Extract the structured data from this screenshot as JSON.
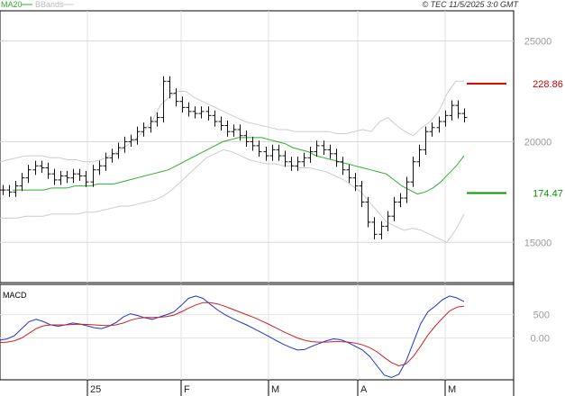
{
  "header": {
    "legend": [
      {
        "label": "MA20",
        "color": "#33aa33"
      },
      {
        "label": "BBands",
        "color": "#bbbbbb"
      }
    ],
    "copyright": "© TEC 11/5/2025 3:0 GMT"
  },
  "chart_data": [
    {
      "type": "line",
      "panel": "price",
      "x_labels": [
        "25",
        "F",
        "M",
        "A",
        "M"
      ],
      "y_ticks": [
        {
          "value": 250,
          "label": "25000"
        },
        {
          "value": 200,
          "label": "20000"
        },
        {
          "value": 150,
          "label": "15000"
        }
      ],
      "ylim": [
        130,
        265
      ],
      "levels": [
        {
          "label": "228.86",
          "value": 228.86,
          "color": "#cc0000"
        },
        {
          "label": "174.47",
          "value": 174.47,
          "color": "#009900"
        }
      ],
      "series": [
        {
          "name": "MA20",
          "color": "#33aa33",
          "values": [
            176,
            176,
            176,
            176,
            176,
            177,
            177,
            177,
            178,
            178,
            178,
            179,
            179,
            179,
            180,
            181,
            182,
            183,
            184,
            185,
            186,
            188,
            190,
            192,
            194,
            196,
            198,
            200,
            201,
            202,
            202,
            202,
            202,
            201,
            200,
            199,
            197,
            196,
            195,
            193,
            192,
            191,
            190,
            189,
            188,
            187,
            186,
            185,
            184,
            181,
            178,
            176,
            174,
            175,
            177,
            180,
            184,
            188,
            193
          ]
        },
        {
          "name": "BBands upper",
          "color": "#cccccc",
          "values": [
            190,
            191,
            192,
            193,
            193,
            193,
            192,
            192,
            191,
            191,
            190,
            190,
            191,
            193,
            195,
            198,
            201,
            205,
            210,
            218,
            222,
            225,
            225,
            222,
            220,
            218,
            216,
            214,
            212,
            210,
            209,
            208,
            207,
            206,
            206,
            205,
            205,
            205,
            205,
            205,
            204,
            204,
            205,
            206,
            205,
            210,
            212,
            208,
            205,
            203,
            207,
            210,
            215,
            224,
            230,
            230
          ]
        },
        {
          "name": "BBands lower",
          "color": "#cccccc",
          "values": [
            162,
            162,
            162,
            163,
            163,
            163,
            164,
            164,
            164,
            164,
            165,
            165,
            166,
            167,
            168,
            168,
            169,
            170,
            171,
            173,
            176,
            180,
            184,
            188,
            192,
            194,
            196,
            195,
            193,
            191,
            190,
            189,
            189,
            188,
            188,
            187,
            187,
            186,
            185,
            183,
            181,
            178,
            175,
            170,
            165,
            160,
            158,
            156,
            157,
            156,
            154,
            152,
            150,
            156,
            164
          ]
        },
        {
          "name": "Price",
          "color": "#111111",
          "values": [
            176,
            175,
            178,
            182,
            186,
            188,
            187,
            184,
            181,
            183,
            182,
            184,
            183,
            180,
            186,
            188,
            192,
            194,
            197,
            200,
            201,
            205,
            207,
            210,
            212,
            230,
            224,
            220,
            217,
            215,
            214,
            215,
            213,
            210,
            208,
            205,
            206,
            203,
            200,
            198,
            195,
            193,
            196,
            193,
            190,
            188,
            190,
            192,
            195,
            198,
            196,
            194,
            190,
            186,
            182,
            178,
            170,
            160,
            154,
            158,
            163,
            170,
            172,
            180,
            190,
            196,
            205,
            207,
            210,
            213,
            218,
            214,
            212
          ]
        }
      ]
    },
    {
      "type": "line",
      "panel": "macd",
      "title": "MACD",
      "y_ticks": [
        {
          "value": 500,
          "label": "500"
        },
        {
          "value": 0,
          "label": "0.00"
        }
      ],
      "ylim": [
        -900,
        1150
      ],
      "series": [
        {
          "name": "MACD",
          "color": "#2233cc",
          "values": [
            -50,
            -20,
            50,
            200,
            350,
            400,
            350,
            280,
            250,
            280,
            320,
            300,
            260,
            220,
            200,
            250,
            330,
            450,
            520,
            480,
            430,
            400,
            450,
            500,
            560,
            700,
            850,
            900,
            850,
            720,
            600,
            500,
            420,
            350,
            280,
            200,
            120,
            40,
            -50,
            -130,
            -200,
            -260,
            -250,
            -180,
            -120,
            -60,
            -20,
            -40,
            -100,
            -180,
            -260,
            -400,
            -600,
            -800,
            -850,
            -780,
            -500,
            -100,
            300,
            560,
            680,
            820,
            900,
            860,
            780
          ]
        },
        {
          "name": "Signal",
          "color": "#cc2222",
          "values": [
            -100,
            -90,
            -60,
            0,
            100,
            200,
            260,
            280,
            280,
            280,
            290,
            295,
            290,
            280,
            270,
            265,
            280,
            320,
            380,
            420,
            440,
            440,
            445,
            460,
            490,
            560,
            640,
            710,
            760,
            760,
            730,
            680,
            620,
            560,
            500,
            440,
            370,
            300,
            220,
            140,
            70,
            0,
            -50,
            -80,
            -90,
            -90,
            -80,
            -80,
            -90,
            -110,
            -150,
            -210,
            -300,
            -420,
            -530,
            -600,
            -560,
            -400,
            -180,
            60,
            250,
            420,
            580,
            660,
            680
          ]
        }
      ]
    }
  ]
}
